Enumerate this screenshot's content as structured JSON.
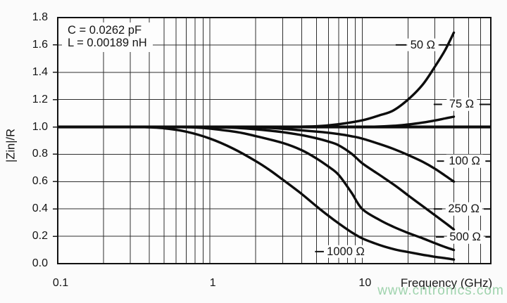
{
  "watermark": {
    "text": "www.cntronics.com",
    "color": "#8fcda0"
  },
  "chart_data": {
    "type": "line",
    "title": "",
    "xlabel": "Frequency (GHz)",
    "ylabel": "|Zin|/R",
    "x_scale": "log",
    "x_range": [
      0.1,
      70
    ],
    "y_range": [
      0.0,
      1.8
    ],
    "grid": "on",
    "x_tick_labels": [
      {
        "value": 0.1,
        "text": "0.1"
      },
      {
        "value": 1,
        "text": "1"
      },
      {
        "value": 10,
        "text": "10"
      }
    ],
    "y_tick_labels": [
      {
        "value": 0.0,
        "text": "0.0"
      },
      {
        "value": 0.2,
        "text": "0.2"
      },
      {
        "value": 0.4,
        "text": "0.4"
      },
      {
        "value": 0.6,
        "text": "0.6"
      },
      {
        "value": 0.8,
        "text": "0.8"
      },
      {
        "value": 1.0,
        "text": "1.0"
      },
      {
        "value": 1.2,
        "text": "1.2"
      },
      {
        "value": 1.4,
        "text": "1.4"
      },
      {
        "value": 1.6,
        "text": "1.6"
      },
      {
        "value": 1.8,
        "text": "1.8"
      }
    ],
    "annotation": {
      "c_line": "C = 0.0262 pF",
      "l_line": "L = 0.00189 nH"
    },
    "reference_line": {
      "value": 1.0
    },
    "series": [
      {
        "name": "50-ohm",
        "label": "50 Ω",
        "label_at": [
          25,
          1.6
        ],
        "dash_left": [
          16.6,
          19.5
        ],
        "dash_right": [
          32.0,
          38.5
        ],
        "points": [
          [
            3,
            1.0
          ],
          [
            5,
            1.005
          ],
          [
            7,
            1.02
          ],
          [
            10,
            1.048
          ],
          [
            13,
            1.085
          ],
          [
            16,
            1.12
          ],
          [
            20,
            1.2
          ],
          [
            25,
            1.31
          ],
          [
            30,
            1.44
          ],
          [
            35,
            1.56
          ],
          [
            40,
            1.69
          ]
        ]
      },
      {
        "name": "75-ohm",
        "label": "75 Ω",
        "label_at": [
          45,
          1.165
        ],
        "dash_left": [
          29.5,
          33.5
        ],
        "dash_right": [
          59.0,
          70.0
        ],
        "points": [
          [
            8,
            1.0
          ],
          [
            12,
            1.002
          ],
          [
            16,
            1.008
          ],
          [
            20,
            1.018
          ],
          [
            25,
            1.032
          ],
          [
            30,
            1.047
          ],
          [
            35,
            1.062
          ],
          [
            40,
            1.075
          ]
        ]
      },
      {
        "name": "100-ohm",
        "label": "100 Ω",
        "label_at": [
          47,
          0.75
        ],
        "dash_left": [
          31.0,
          34.5
        ],
        "dash_right": [
          64.5,
          70.0
        ],
        "points": [
          [
            1.5,
            1.0
          ],
          [
            2.5,
            0.992
          ],
          [
            4,
            0.975
          ],
          [
            5.5,
            0.962
          ],
          [
            7,
            0.948
          ],
          [
            8.5,
            0.932
          ],
          [
            10,
            0.915
          ],
          [
            13,
            0.875
          ],
          [
            16,
            0.84
          ],
          [
            20,
            0.795
          ],
          [
            25,
            0.745
          ],
          [
            30,
            0.695
          ],
          [
            35,
            0.645
          ],
          [
            40,
            0.6
          ]
        ]
      },
      {
        "name": "250-ohm",
        "label": "250 Ω",
        "label_at": [
          46.5,
          0.4
        ],
        "dash_left": [
          29.5,
          33.5
        ],
        "dash_right": [
          63.0,
          70.0
        ],
        "points": [
          [
            1,
            1.0
          ],
          [
            1.5,
            0.993
          ],
          [
            2,
            0.983
          ],
          [
            3,
            0.962
          ],
          [
            4,
            0.94
          ],
          [
            5,
            0.917
          ],
          [
            6,
            0.893
          ],
          [
            7,
            0.866
          ],
          [
            8.5,
            0.805
          ],
          [
            10,
            0.735
          ],
          [
            12,
            0.675
          ],
          [
            14,
            0.625
          ],
          [
            17,
            0.56
          ],
          [
            20,
            0.5
          ],
          [
            25,
            0.42
          ],
          [
            30,
            0.355
          ],
          [
            35,
            0.3
          ],
          [
            40,
            0.25
          ]
        ]
      },
      {
        "name": "500-ohm",
        "label": "500 Ω",
        "label_at": [
          47.5,
          0.195
        ],
        "dash_left": [
          30.5,
          34.5
        ],
        "dash_right": [
          64.5,
          70.0
        ],
        "points": [
          [
            0.6,
            1.0
          ],
          [
            0.8,
            0.996
          ],
          [
            1,
            0.988
          ],
          [
            1.5,
            0.963
          ],
          [
            2,
            0.933
          ],
          [
            3,
            0.883
          ],
          [
            4,
            0.83
          ],
          [
            5,
            0.77
          ],
          [
            6,
            0.71
          ],
          [
            7,
            0.65
          ],
          [
            8.5,
            0.52
          ],
          [
            10,
            0.4
          ],
          [
            13,
            0.32
          ],
          [
            16,
            0.27
          ],
          [
            20,
            0.225
          ],
          [
            25,
            0.185
          ],
          [
            30,
            0.15
          ],
          [
            35,
            0.122
          ],
          [
            40,
            0.1
          ]
        ]
      },
      {
        "name": "1000-ohm",
        "label": "1000 Ω",
        "label_at": [
          7.8,
          0.088
        ],
        "dash_left": [
          4.9,
          5.6
        ],
        "dash_right": null,
        "points": [
          [
            0.35,
            1.0
          ],
          [
            0.5,
            0.99
          ],
          [
            0.7,
            0.965
          ],
          [
            1,
            0.915
          ],
          [
            1.4,
            0.845
          ],
          [
            2,
            0.75
          ],
          [
            2.5,
            0.68
          ],
          [
            3,
            0.615
          ],
          [
            4,
            0.51
          ],
          [
            5,
            0.42
          ],
          [
            6,
            0.35
          ],
          [
            7,
            0.295
          ],
          [
            8.5,
            0.23
          ],
          [
            10,
            0.185
          ],
          [
            12,
            0.15
          ],
          [
            14,
            0.125
          ],
          [
            17,
            0.1
          ],
          [
            20,
            0.085
          ],
          [
            25,
            0.065
          ],
          [
            30,
            0.05
          ],
          [
            35,
            0.04
          ],
          [
            40,
            0.03
          ]
        ]
      }
    ]
  }
}
